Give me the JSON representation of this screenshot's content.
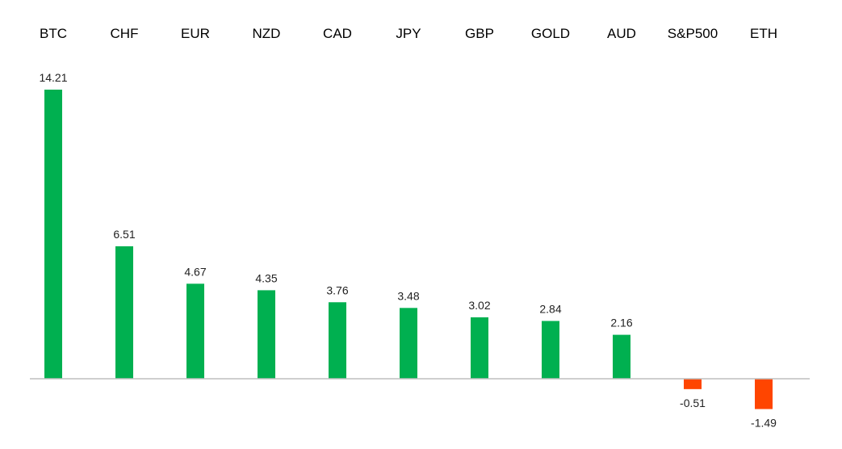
{
  "chart_data": {
    "type": "bar",
    "categories": [
      "BTC",
      "CHF",
      "EUR",
      "NZD",
      "CAD",
      "JPY",
      "GBP",
      "GOLD",
      "AUD",
      "S&P500",
      "ETH"
    ],
    "values": [
      14.21,
      6.51,
      4.67,
      4.35,
      3.76,
      3.48,
      3.02,
      2.84,
      2.16,
      -0.51,
      -1.49
    ],
    "data_labels": [
      "14.21",
      "6.51",
      "4.67",
      "4.35",
      "3.76",
      "3.48",
      "3.02",
      "2.84",
      "2.16",
      "-0.51",
      "-1.49"
    ],
    "title": "",
    "xlabel": "",
    "ylabel": "",
    "ylim": [
      -1.49,
      14.21
    ],
    "grid": false,
    "category_axis_position": "top",
    "colors": {
      "positive": "#00b050",
      "negative": "#ff4500",
      "axis": "#bfbfbf"
    }
  }
}
